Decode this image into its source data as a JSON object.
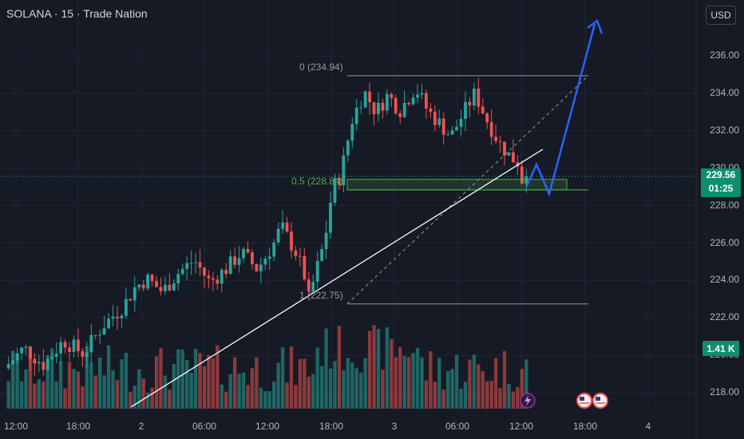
{
  "header": {
    "title": "SOLANA · 15 · Trade Nation",
    "currency_button": "USD"
  },
  "price_axis": {
    "labels": [
      "236.00",
      "234.00",
      "232.00",
      "230.00",
      "228.00",
      "226.00",
      "224.00",
      "222.00",
      "220.00",
      "218.00"
    ]
  },
  "time_axis": {
    "labels": [
      "12:00",
      "18:00",
      "2",
      "06:00",
      "12:00",
      "18:00",
      "3",
      "06:00",
      "12:00",
      "18:00",
      "4"
    ]
  },
  "current_price": {
    "price": "229.56",
    "countdown": "01:25"
  },
  "volume_tag": "1.41 K",
  "fib_levels": [
    {
      "label": "0 (234.94)",
      "price": 234.94
    },
    {
      "label": "0.5 (228.84)",
      "price": 228.84
    },
    {
      "label": "1 (222.75)",
      "price": 222.75
    }
  ],
  "chart_data": {
    "type": "candlestick",
    "symbol": "SOLANA",
    "interval": "15",
    "ylim": [
      217,
      237.5
    ],
    "close_path": [
      [
        0.0,
        219.3
      ],
      [
        0.05,
        220.4
      ],
      [
        0.1,
        219.5
      ],
      [
        0.15,
        220.8
      ],
      [
        0.2,
        220.1
      ],
      [
        0.25,
        221.6
      ],
      [
        0.3,
        222.6
      ],
      [
        0.33,
        223.6
      ],
      [
        0.36,
        224.1
      ],
      [
        0.4,
        223.4
      ],
      [
        0.44,
        224.4
      ],
      [
        0.48,
        225.1
      ],
      [
        0.52,
        223.9
      ],
      [
        0.56,
        224.6
      ],
      [
        0.6,
        225.5
      ],
      [
        0.64,
        224.6
      ],
      [
        0.68,
        225.9
      ],
      [
        0.7,
        226.9
      ],
      [
        0.74,
        225.4
      ],
      [
        0.76,
        224.2
      ],
      [
        0.77,
        223.0
      ],
      [
        0.79,
        224.6
      ],
      [
        0.81,
        226.1
      ],
      [
        0.83,
        228.9
      ],
      [
        0.85,
        229.6
      ],
      [
        0.88,
        232.6
      ],
      [
        0.91,
        234.1
      ],
      [
        0.94,
        233.0
      ],
      [
        0.97,
        233.9
      ],
      [
        1.0,
        233.1
      ],
      [
        1.04,
        234.3
      ],
      [
        1.07,
        233.1
      ],
      [
        1.1,
        232.4
      ],
      [
        1.13,
        231.7
      ],
      [
        1.16,
        232.9
      ],
      [
        1.19,
        234.0
      ],
      [
        1.22,
        232.6
      ],
      [
        1.25,
        231.4
      ],
      [
        1.28,
        230.6
      ],
      [
        1.3,
        230.3
      ],
      [
        1.31,
        229.3
      ],
      [
        1.32,
        229.56
      ]
    ],
    "candles_count": 120,
    "day_markers": [
      "2",
      "3",
      "4"
    ],
    "projection_path": [
      [
        229.0
      ],
      [
        229.8
      ],
      [
        228.6
      ],
      [
        236.6
      ]
    ],
    "trendline_note": "ascending support line from day 2 low"
  }
}
